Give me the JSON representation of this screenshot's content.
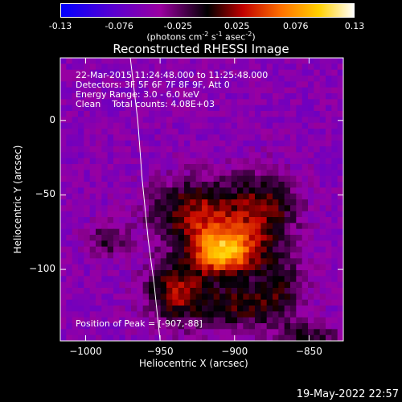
{
  "colorbar": {
    "min": -0.13,
    "max": 0.13,
    "ticks": [
      "-0.13",
      "-0.076",
      "-0.025",
      "0.025",
      "0.076",
      "0.13"
    ],
    "units_html": "(photons cm<sup style=\"font-size:8px\">-2</sup> s<sup style=\"font-size:8px\">-1</sup> asec<sup style=\"font-size:8px\">-2</sup>)",
    "colors": [
      "#0000ff",
      "#5a00d0",
      "#9a00a0",
      "#000000",
      "#c00000",
      "#ff7000",
      "#ffd000",
      "#ffffff"
    ]
  },
  "chart_data": {
    "type": "heatmap",
    "title": "Reconstructed RHESSI Image",
    "xlabel": "Heliocentric X (arcsec)",
    "ylabel": "Heliocentric Y (arcsec)",
    "xlim": [
      -1017,
      -827
    ],
    "ylim": [
      -148,
      42
    ],
    "xticks": [
      -1000,
      -950,
      -900,
      -850
    ],
    "yticks": [
      -100,
      -50,
      0
    ],
    "annotations": {
      "line1": "22-Mar-2015 11:24:48.000 to 11:25:48.000",
      "line2": "Detectors: 3F 5F 6F 7F 8F 9F, Att 0",
      "line3": "Energy Range: 3.0 - 6.0 keV",
      "line4": "Clean    Total counts: 4.08E+03",
      "peak": "Position of Peak = [-907,-88]"
    },
    "peak": [
      -907,
      -88
    ],
    "limb_curve": [
      [
        -970,
        42
      ],
      [
        -965,
        0
      ],
      [
        -962,
        -40
      ],
      [
        -958,
        -80
      ],
      [
        -954,
        -110
      ],
      [
        -950,
        -148
      ]
    ]
  },
  "footer": {
    "timestamp": "19-May-2022 22:57"
  }
}
